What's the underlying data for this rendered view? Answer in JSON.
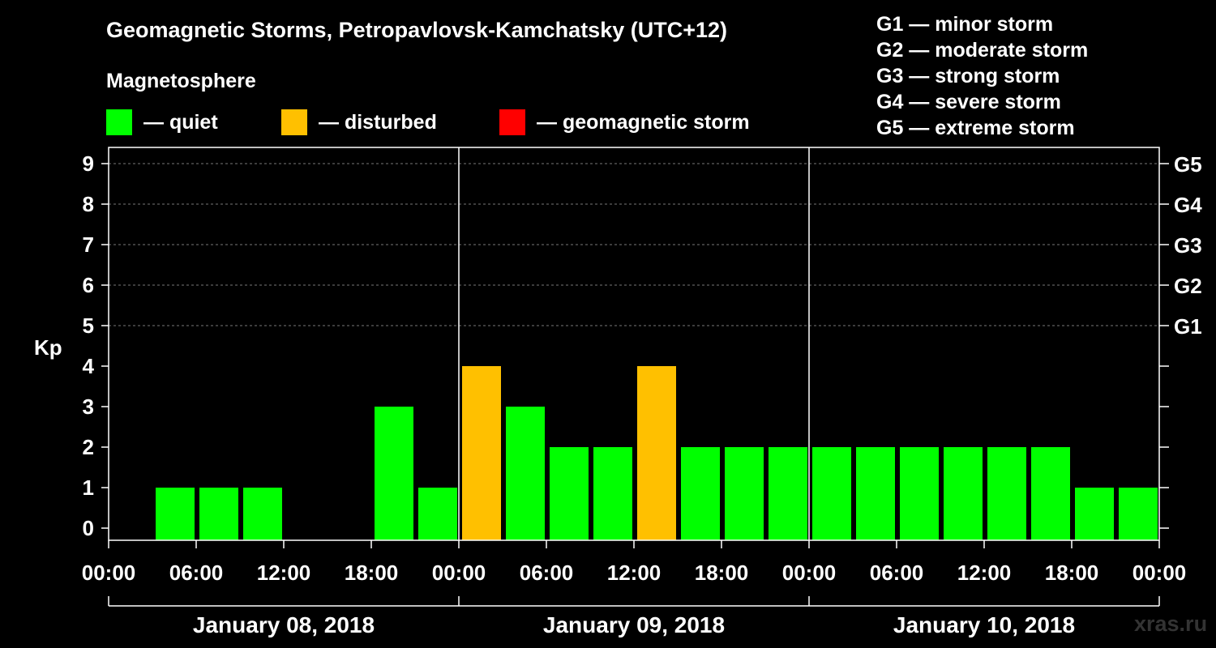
{
  "title": "Geomagnetic Storms, Petropavlovsk-Kamchatsky (UTC+12)",
  "subtitle": "Magnetosphere",
  "status_legend": [
    {
      "label": "— quiet",
      "color": "#00ff00"
    },
    {
      "label": "— disturbed",
      "color": "#ffc000"
    },
    {
      "label": "— geomagnetic storm",
      "color": "#ff0000"
    }
  ],
  "g_legend": [
    "G1 — minor storm",
    "G2 — moderate storm",
    "G3 — strong storm",
    "G4 — severe storm",
    "G5 — extreme storm"
  ],
  "watermark": "xras.ru",
  "chart_data": {
    "type": "bar",
    "ylabel": "Kp",
    "ylim": [
      0,
      9
    ],
    "y_ticks": [
      "0",
      "1",
      "2",
      "3",
      "4",
      "5",
      "6",
      "7",
      "8",
      "9"
    ],
    "right_axis_ticks": [
      {
        "kp": 5,
        "label": "G1"
      },
      {
        "kp": 6,
        "label": "G2"
      },
      {
        "kp": 7,
        "label": "G3"
      },
      {
        "kp": 8,
        "label": "G4"
      },
      {
        "kp": 9,
        "label": "G5"
      }
    ],
    "x_tick_labels": [
      "00:00",
      "06:00",
      "12:00",
      "18:00",
      "00:00",
      "06:00",
      "12:00",
      "18:00",
      "00:00",
      "06:00",
      "12:00",
      "18:00",
      "00:00"
    ],
    "days": [
      "January 08, 2018",
      "January 09, 2018",
      "January 10, 2018"
    ],
    "interval_hours": 3,
    "grid": "dashed horizontal at Kp 5-9",
    "colors": {
      "quiet": "#00ff00",
      "disturbed": "#ffc000",
      "storm": "#ff0000"
    },
    "values": [
      0,
      1,
      1,
      1,
      0,
      0,
      3,
      1,
      4,
      3,
      2,
      2,
      4,
      2,
      2,
      2,
      2,
      2,
      2,
      2,
      2,
      2,
      1,
      1
    ],
    "status": [
      "quiet",
      "quiet",
      "quiet",
      "quiet",
      "quiet",
      "quiet",
      "quiet",
      "quiet",
      "disturbed",
      "quiet",
      "quiet",
      "quiet",
      "disturbed",
      "quiet",
      "quiet",
      "quiet",
      "quiet",
      "quiet",
      "quiet",
      "quiet",
      "quiet",
      "quiet",
      "quiet",
      "quiet"
    ]
  }
}
